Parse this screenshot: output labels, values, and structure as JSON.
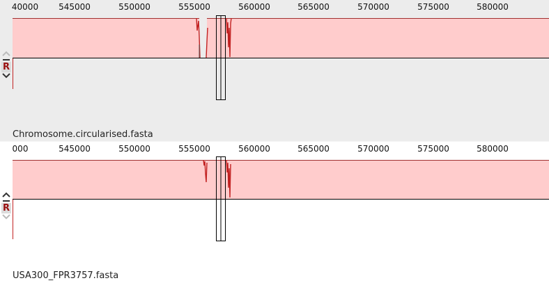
{
  "panels": [
    {
      "id": "chromosome",
      "sequence_name": "Chromosome.circularised.fasta",
      "ruler_ticks": [
        "40000",
        "545000",
        "550000",
        "555000",
        "560000",
        "565000",
        "570000",
        "575000",
        "580000"
      ],
      "reverse_label": "R",
      "background_color": "#ececec"
    },
    {
      "id": "usa300",
      "sequence_name": "USA300_FPR3757.fasta",
      "ruler_ticks": [
        "000",
        "545000",
        "550000",
        "555000",
        "560000",
        "565000",
        "570000",
        "575000",
        "580000"
      ],
      "reverse_label": "R",
      "background_color": "#ffffff"
    }
  ],
  "colors": {
    "similarity_fill": "#ffcccc",
    "similarity_edge": "#a03030",
    "dip_color": "#c22222",
    "tick_text": "#111111"
  },
  "icons": [
    "chevron-up-icon",
    "minus-icon",
    "chevron-down-icon"
  ]
}
